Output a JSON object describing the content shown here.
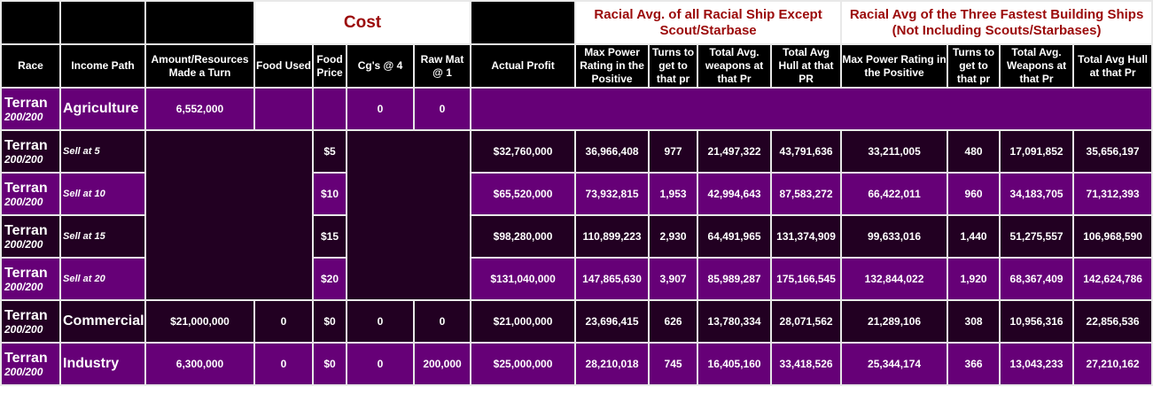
{
  "header": {
    "cost": "Cost",
    "group1": "Racial Avg. of all Racial Ship Except Scout/Starbase",
    "group2": "Racial Avg of the Three Fastest Building Ships (Not Including Scouts/Starbases)",
    "columns": [
      "Race",
      "Income Path",
      "Amount/Resources Made a Turn",
      "Food Used",
      "Food Price",
      "Cg's @ 4",
      "Raw Mat @ 1",
      "Actual Profit",
      "Max Power Rating in the Positive",
      "Turns to get to that pr",
      "Total Avg. weapons at that Pr",
      "Total Avg Hull at that PR",
      "Max Power Rating in the Positive",
      "Turns to get to that pr",
      "Total Avg. Weapons at that Pr",
      "Total Avg Hull at that Pr"
    ]
  },
  "rows": [
    {
      "race": "Terran",
      "score": "200/200",
      "path": "Agriculture",
      "amount": "6,552,000",
      "food_used": "",
      "food_price": "",
      "cg": "0",
      "raw": "0"
    },
    {
      "race": "Terran",
      "score": "200/200",
      "path": "Sell at 5",
      "food_price": "$5",
      "values": [
        "$32,760,000",
        "36,966,408",
        "977",
        "21,497,322",
        "43,791,636",
        "33,211,005",
        "480",
        "17,091,852",
        "35,656,197"
      ]
    },
    {
      "race": "Terran",
      "score": "200/200",
      "path": "Sell at 10",
      "food_price": "$10",
      "values": [
        "$65,520,000",
        "73,932,815",
        "1,953",
        "42,994,643",
        "87,583,272",
        "66,422,011",
        "960",
        "34,183,705",
        "71,312,393"
      ]
    },
    {
      "race": "Terran",
      "score": "200/200",
      "path": "Sell at 15",
      "food_price": "$15",
      "values": [
        "$98,280,000",
        "110,899,223",
        "2,930",
        "64,491,965",
        "131,374,909",
        "99,633,016",
        "1,440",
        "51,275,557",
        "106,968,590"
      ]
    },
    {
      "race": "Terran",
      "score": "200/200",
      "path": "Sell at 20",
      "food_price": "$20",
      "values": [
        "$131,040,000",
        "147,865,630",
        "3,907",
        "85,989,287",
        "175,166,545",
        "132,844,022",
        "1,920",
        "68,367,409",
        "142,624,786"
      ]
    },
    {
      "race": "Terran",
      "score": "200/200",
      "path": "Commercial",
      "amount": "$21,000,000",
      "food_used": "0",
      "food_price": "$0",
      "cg": "0",
      "raw": "0",
      "values": [
        "$21,000,000",
        "23,696,415",
        "626",
        "13,780,334",
        "28,071,562",
        "21,289,106",
        "308",
        "10,956,316",
        "22,856,536"
      ]
    },
    {
      "race": "Terran",
      "score": "200/200",
      "path": "Industry",
      "amount": "6,300,000",
      "food_used": "0",
      "food_price": "$0",
      "cg": "0",
      "raw": "200,000",
      "values": [
        "$25,000,000",
        "28,210,018",
        "745",
        "16,405,160",
        "33,418,526",
        "25,344,174",
        "366",
        "13,043,233",
        "27,210,162"
      ]
    }
  ],
  "colors": {
    "purple": "#660077",
    "dark": "#220022",
    "header_red": "#9b0a0a"
  }
}
